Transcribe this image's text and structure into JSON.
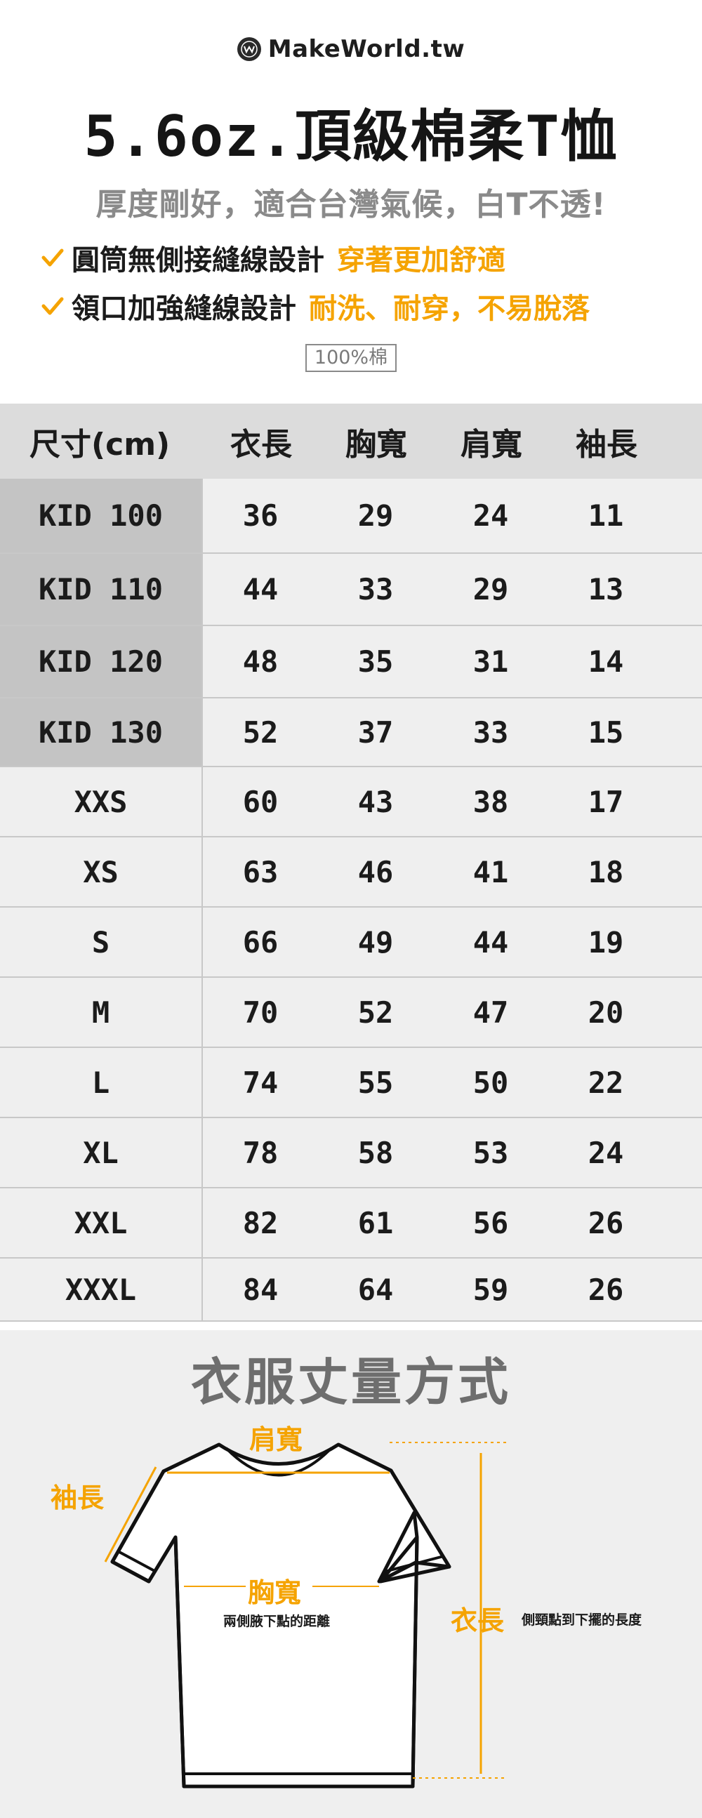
{
  "brand": {
    "name": "MakeWorld.tw",
    "logo_icon": "makeworld-logo-icon"
  },
  "title": "5.6oz.頂級棉柔T恤",
  "subtitle": "厚度剛好，適合台灣氣候，白T不透!",
  "features": [
    {
      "icon": "check-icon",
      "text": "圓筒無側接縫線設計",
      "highlight": "穿著更加舒適"
    },
    {
      "icon": "check-icon",
      "text": "領口加強縫線設計",
      "highlight": "耐洗、耐穿，不易脫落"
    }
  ],
  "material": "100%棉",
  "colors": {
    "accent": "#f5a300",
    "header_bg": "#dcdcdc",
    "row_bg": "#efefef",
    "kid_bg": "#c4c4c4"
  },
  "size_table": {
    "headers": [
      "尺寸(cm)",
      "衣長",
      "胸寬",
      "肩寬",
      "袖長"
    ],
    "rows": [
      {
        "size": "KID 100",
        "kid": true,
        "values": [
          "36",
          "29",
          "24",
          "11"
        ]
      },
      {
        "size": "KID 110",
        "kid": true,
        "values": [
          "44",
          "33",
          "29",
          "13"
        ]
      },
      {
        "size": "KID 120",
        "kid": true,
        "values": [
          "48",
          "35",
          "31",
          "14"
        ]
      },
      {
        "size": "KID 130",
        "kid": true,
        "values": [
          "52",
          "37",
          "33",
          "15"
        ]
      },
      {
        "size": "XXS",
        "kid": false,
        "values": [
          "60",
          "43",
          "38",
          "17"
        ]
      },
      {
        "size": "XS",
        "kid": false,
        "values": [
          "63",
          "46",
          "41",
          "18"
        ]
      },
      {
        "size": "S",
        "kid": false,
        "values": [
          "66",
          "49",
          "44",
          "19"
        ]
      },
      {
        "size": "M",
        "kid": false,
        "values": [
          "70",
          "52",
          "47",
          "20"
        ]
      },
      {
        "size": "L",
        "kid": false,
        "values": [
          "74",
          "55",
          "50",
          "22"
        ]
      },
      {
        "size": "XL",
        "kid": false,
        "values": [
          "78",
          "58",
          "53",
          "24"
        ]
      },
      {
        "size": "XXL",
        "kid": false,
        "values": [
          "82",
          "61",
          "56",
          "26"
        ]
      },
      {
        "size": "XXXL",
        "kid": false,
        "values": [
          "84",
          "64",
          "59",
          "26"
        ]
      }
    ]
  },
  "measure": {
    "title": "衣服丈量方式",
    "shoulder_label": "肩寬",
    "sleeve_label": "袖長",
    "chest_label": "胸寬",
    "chest_desc": "兩側腋下點的距離",
    "length_label": "衣長",
    "length_desc": "側頸點到下擺的長度"
  }
}
